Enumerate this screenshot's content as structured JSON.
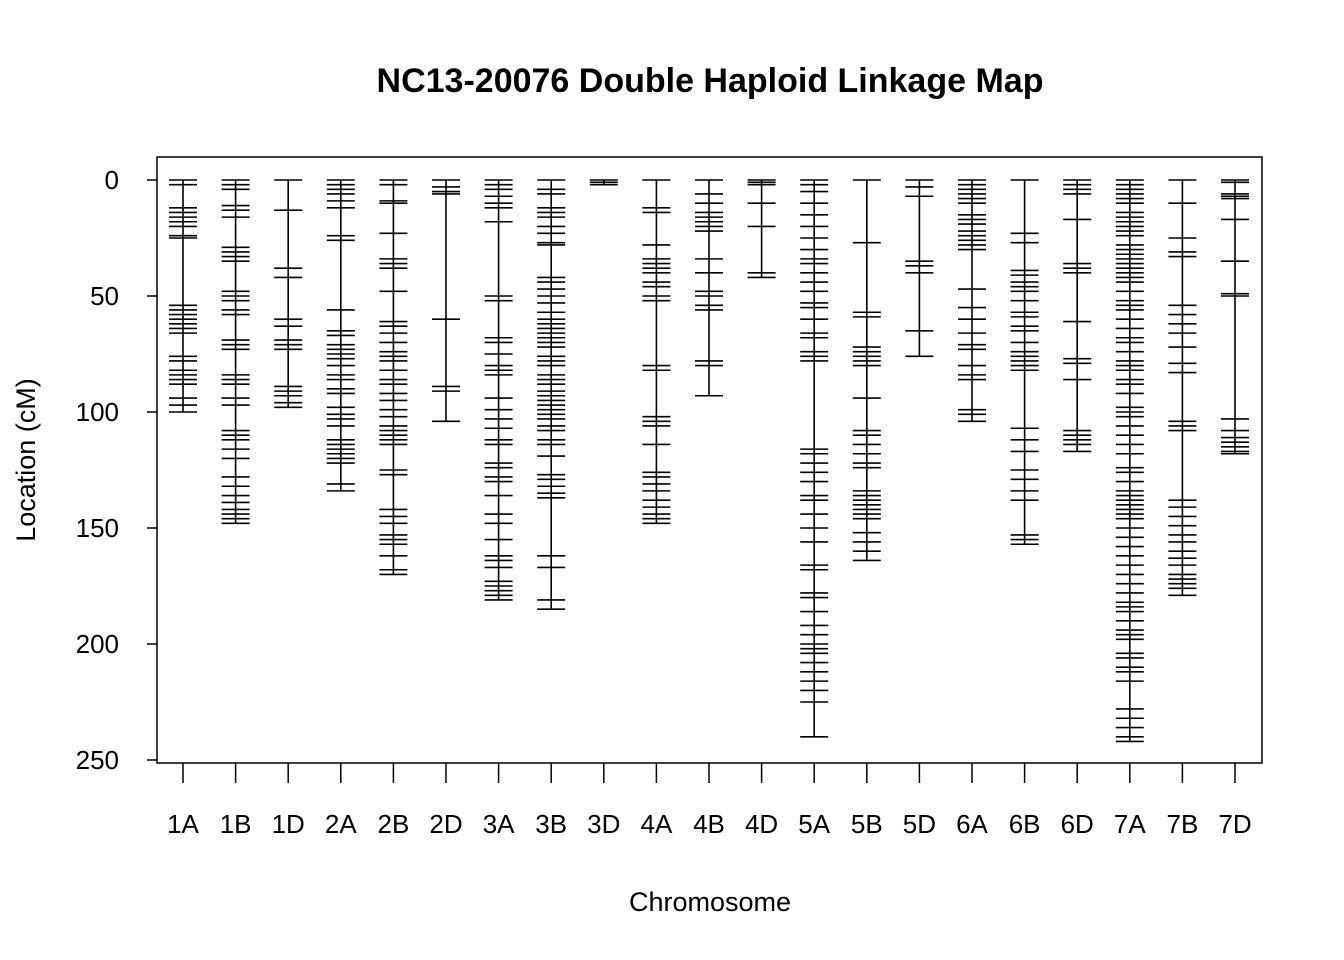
{
  "chart_data": {
    "type": "linkage_map",
    "title": "NC13-20076 Double Haploid Linkage Map",
    "xlabel": "Chromosome",
    "ylabel": "Location (cM)",
    "ylim": [
      0,
      250
    ],
    "y_reversed": true,
    "y_ticks": [
      0,
      50,
      100,
      150,
      200,
      250
    ],
    "y_tick_labels": [
      "0",
      "50",
      "100",
      "150",
      "200",
      "250"
    ],
    "grid": false,
    "legend": "none",
    "colors": {
      "line": "#000000",
      "background": "#ffffff"
    },
    "chromosomes": [
      {
        "name": "1A",
        "markers": [
          0,
          2,
          12,
          14,
          16,
          18,
          20,
          24,
          25,
          54,
          56,
          58,
          60,
          62,
          64,
          66,
          76,
          78,
          82,
          84,
          86,
          88,
          94,
          97,
          100
        ]
      },
      {
        "name": "1B",
        "markers": [
          0,
          2,
          4,
          11,
          13,
          16,
          29,
          31,
          33,
          35,
          48,
          50,
          52,
          56,
          58,
          69,
          71,
          73,
          84,
          86,
          88,
          94,
          97,
          108,
          110,
          112,
          116,
          120,
          128,
          132,
          136,
          139,
          142,
          144,
          146,
          148
        ]
      },
      {
        "name": "1D",
        "markers": [
          0,
          13,
          38,
          42,
          60,
          63,
          69,
          71,
          73,
          89,
          91,
          93,
          96,
          98
        ]
      },
      {
        "name": "2A",
        "markers": [
          0,
          2,
          4,
          6,
          9,
          12,
          24,
          26,
          56,
          65,
          67,
          71,
          73,
          75,
          77,
          80,
          84,
          86,
          90,
          92,
          98,
          101,
          103,
          106,
          112,
          114,
          116,
          118,
          120,
          122,
          131,
          134
        ]
      },
      {
        "name": "2B",
        "markers": [
          0,
          2,
          9,
          10,
          23,
          34,
          36,
          38,
          48,
          61,
          63,
          66,
          70,
          74,
          76,
          78,
          82,
          86,
          88,
          92,
          95,
          99,
          102,
          106,
          108,
          110,
          112,
          114,
          125,
          127,
          142,
          145,
          148,
          153,
          155,
          157,
          162,
          168,
          170
        ]
      },
      {
        "name": "2D",
        "markers": [
          0,
          3,
          5,
          6,
          60,
          89,
          91,
          104
        ]
      },
      {
        "name": "3A",
        "markers": [
          0,
          2,
          4,
          7,
          10,
          12,
          18,
          50,
          52,
          68,
          70,
          75,
          80,
          82,
          84,
          94,
          99,
          103,
          107,
          112,
          114,
          122,
          124,
          128,
          130,
          136,
          144,
          148,
          155,
          162,
          164,
          167,
          173,
          175,
          177,
          179,
          181
        ]
      },
      {
        "name": "3B",
        "markers": [
          0,
          4,
          6,
          12,
          14,
          16,
          20,
          23,
          27,
          28,
          42,
          44,
          47,
          50,
          53,
          57,
          60,
          62,
          64,
          66,
          68,
          70,
          72,
          76,
          78,
          80,
          84,
          86,
          88,
          91,
          93,
          95,
          97,
          99,
          101,
          103,
          106,
          108,
          112,
          114,
          119,
          127,
          129,
          132,
          135,
          137,
          162,
          167,
          181,
          185
        ]
      },
      {
        "name": "3D",
        "markers": [
          0,
          1,
          2
        ]
      },
      {
        "name": "4A",
        "markers": [
          0,
          12,
          14,
          28,
          34,
          36,
          38,
          40,
          44,
          46,
          50,
          52,
          80,
          82,
          102,
          104,
          106,
          114,
          126,
          128,
          131,
          134,
          138,
          141,
          144,
          146,
          148
        ]
      },
      {
        "name": "4B",
        "markers": [
          0,
          6,
          10,
          14,
          16,
          18,
          20,
          22,
          34,
          40,
          48,
          50,
          54,
          56,
          78,
          80,
          93
        ]
      },
      {
        "name": "4D",
        "markers": [
          0,
          1,
          2,
          10,
          20,
          40,
          42
        ]
      },
      {
        "name": "5A",
        "markers": [
          0,
          2,
          5,
          10,
          15,
          20,
          25,
          30,
          34,
          36,
          40,
          44,
          48,
          53,
          55,
          60,
          66,
          68,
          74,
          76,
          78,
          116,
          118,
          122,
          126,
          130,
          136,
          138,
          144,
          150,
          156,
          166,
          168,
          178,
          180,
          186,
          192,
          196,
          200,
          202,
          204,
          208,
          212,
          216,
          220,
          225,
          240
        ]
      },
      {
        "name": "5B",
        "markers": [
          0,
          27,
          57,
          59,
          72,
          74,
          76,
          78,
          80,
          94,
          108,
          110,
          114,
          118,
          122,
          124,
          134,
          136,
          138,
          140,
          142,
          144,
          146,
          152,
          156,
          160,
          164
        ]
      },
      {
        "name": "5D",
        "markers": [
          0,
          3,
          7,
          35,
          37,
          40,
          65,
          76
        ]
      },
      {
        "name": "6A",
        "markers": [
          0,
          2,
          4,
          6,
          8,
          10,
          15,
          17,
          19,
          22,
          24,
          26,
          28,
          30,
          47,
          55,
          60,
          66,
          71,
          73,
          80,
          84,
          86,
          99,
          101,
          104
        ]
      },
      {
        "name": "6B",
        "markers": [
          0,
          23,
          27,
          39,
          41,
          44,
          46,
          48,
          52,
          57,
          59,
          63,
          65,
          70,
          74,
          76,
          78,
          80,
          82,
          107,
          112,
          117,
          125,
          129,
          134,
          138,
          153,
          155,
          157
        ]
      },
      {
        "name": "6D",
        "markers": [
          0,
          2,
          4,
          6,
          17,
          36,
          38,
          40,
          61,
          77,
          79,
          86,
          108,
          110,
          112,
          114,
          117
        ]
      },
      {
        "name": "7A",
        "markers": [
          0,
          2,
          4,
          6,
          8,
          10,
          14,
          16,
          18,
          20,
          22,
          24,
          28,
          30,
          32,
          34,
          36,
          38,
          40,
          42,
          44,
          48,
          52,
          54,
          56,
          60,
          64,
          68,
          70,
          74,
          78,
          80,
          82,
          86,
          88,
          92,
          98,
          100,
          102,
          106,
          110,
          114,
          118,
          124,
          126,
          130,
          134,
          136,
          138,
          140,
          142,
          144,
          146,
          150,
          154,
          158,
          162,
          166,
          170,
          174,
          178,
          182,
          184,
          186,
          190,
          194,
          196,
          198,
          204,
          206,
          210,
          212,
          216,
          228,
          232,
          236,
          240,
          242
        ]
      },
      {
        "name": "7B",
        "markers": [
          0,
          10,
          25,
          31,
          33,
          54,
          58,
          62,
          66,
          72,
          79,
          83,
          104,
          106,
          108,
          138,
          141,
          145,
          149,
          153,
          156,
          160,
          163,
          166,
          170,
          172,
          174,
          176,
          179
        ]
      },
      {
        "name": "7D",
        "markers": [
          0,
          1,
          6,
          7,
          8,
          17,
          35,
          49,
          50,
          103,
          108,
          111,
          113,
          115,
          117,
          118
        ]
      }
    ]
  }
}
